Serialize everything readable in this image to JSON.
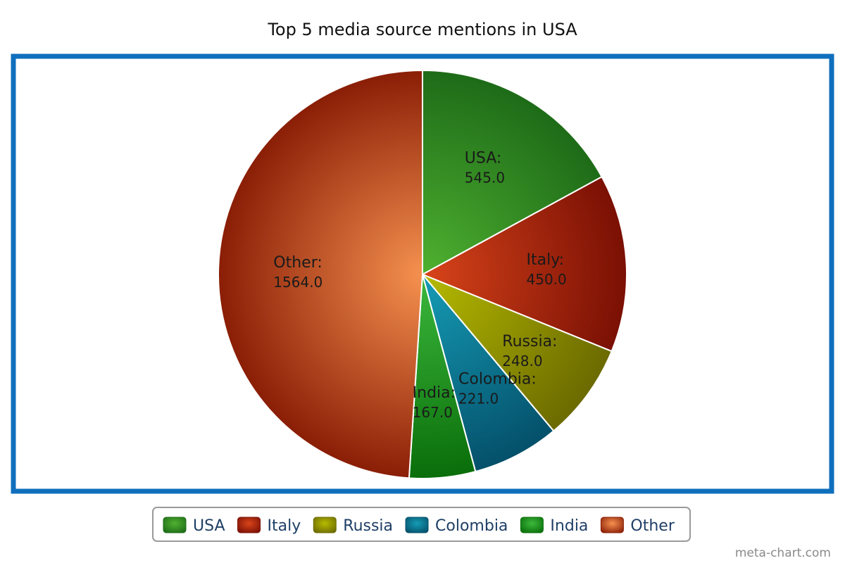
{
  "chart_data": {
    "type": "pie",
    "title": "Top 5 media source mentions in USA",
    "categories": [
      "USA",
      "Italy",
      "Russia",
      "Colombia",
      "India",
      "Other"
    ],
    "values": [
      545.0,
      450.0,
      248.0,
      221.0,
      167.0,
      1564.0
    ],
    "value_labels": [
      "545.0",
      "450.0",
      "248.0",
      "221.0",
      "167.0",
      "1564.0"
    ],
    "colors": {
      "USA": {
        "light": "#4fb130",
        "dark": "#1e6b18"
      },
      "Italy": {
        "light": "#d8441a",
        "dark": "#7a1004"
      },
      "Russia": {
        "light": "#b6ba00",
        "dark": "#6b6a00"
      },
      "Colombia": {
        "light": "#169cb6",
        "dark": "#04506a"
      },
      "India": {
        "light": "#3cb83c",
        "dark": "#0a6e0a"
      },
      "Other": {
        "light": "#f5914f",
        "dark": "#8a1e06"
      }
    },
    "frame_color": "#0f6fbd",
    "legend_position": "bottom",
    "start_angle": "top, clockwise"
  },
  "watermark": "meta-chart.com"
}
